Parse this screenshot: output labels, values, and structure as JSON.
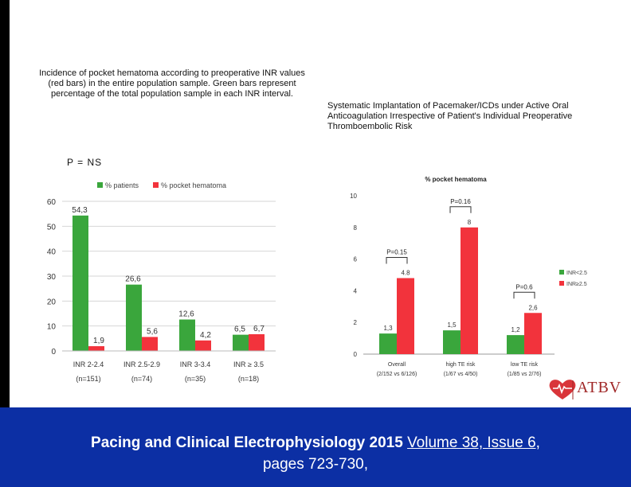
{
  "captions": {
    "left": "Incidence of pocket hematoma according to preoperative INR values (red bars) in the entire population sample. Green bars represent percentage of the total population sample in each INR interval.",
    "right": "Systematic Implantation of Pacemaker/ICDs under Active Oral Anticoagulation Irrespective of Patient's Individual Preoperative Thromboembolic Risk",
    "p_value": "P = NS"
  },
  "colors": {
    "green": "#3aa63c",
    "red": "#f2333c",
    "footer_bg": "#0c2fa4",
    "logo_red": "#a02828"
  },
  "chart_data": [
    {
      "type": "bar",
      "title": "",
      "categories": [
        "INR 2-2.4 (n=151)",
        "INR 2.5-2.9 (n=74)",
        "INR 3-3.4 (n=35)",
        "INR ≥ 3.5 (n=18)"
      ],
      "category_lines": [
        [
          "INR 2-2.4",
          "(n=151)"
        ],
        [
          "INR 2.5-2.9",
          "(n=74)"
        ],
        [
          "INR 3-3.4",
          "(n=35)"
        ],
        [
          "INR ≥ 3.5",
          "(n=18)"
        ]
      ],
      "series": [
        {
          "name": "% patients",
          "values": [
            54.3,
            26.6,
            12.6,
            6.5
          ],
          "labels": [
            "54,3",
            "26,6",
            "12,6",
            "6,5"
          ]
        },
        {
          "name": "% pocket hematoma",
          "values": [
            1.9,
            5.6,
            4.2,
            6.7
          ],
          "labels": [
            "1,9",
            "5,6",
            "4,2",
            "6,7"
          ]
        }
      ],
      "yticks": [
        "0",
        "10",
        "20",
        "30",
        "40",
        "50",
        "60"
      ],
      "ylim": [
        0,
        60
      ],
      "grid": true,
      "legend": "top"
    },
    {
      "type": "bar",
      "title": "% pocket hematoma",
      "categories": [
        "Overall (2/152 vs 6/126)",
        "high TE risk (1/67 vs 4/50)",
        "low TE risk (1/85 vs 2/76)"
      ],
      "category_lines": [
        [
          "Overall",
          "(2/152 vs 6/126)"
        ],
        [
          "high TE risk",
          "(1/67 vs 4/50)"
        ],
        [
          "low TE risk",
          "(1/85 vs 2/76)"
        ]
      ],
      "series": [
        {
          "name": "INR<2.5",
          "values": [
            1.3,
            1.5,
            1.2
          ],
          "labels": [
            "1,3",
            "1,5",
            "1,2"
          ]
        },
        {
          "name": "INR≥2.5",
          "values": [
            4.8,
            8,
            2.6
          ],
          "labels": [
            "4.8",
            "8",
            "2,6"
          ]
        }
      ],
      "annotations": [
        "P=0.15",
        "P=0.16",
        "P=0.6"
      ],
      "yticks": [
        "0",
        "2",
        "4",
        "6",
        "8",
        "10"
      ],
      "ylim": [
        0,
        10
      ],
      "grid": false,
      "legend": "right"
    }
  ],
  "logo": {
    "text": "ATBV"
  },
  "footer": {
    "journal": "Pacing and Clinical Electrophysiology 2015",
    "issue": "Volume 38, Issue 6,",
    "pages": "pages 723-730,"
  }
}
